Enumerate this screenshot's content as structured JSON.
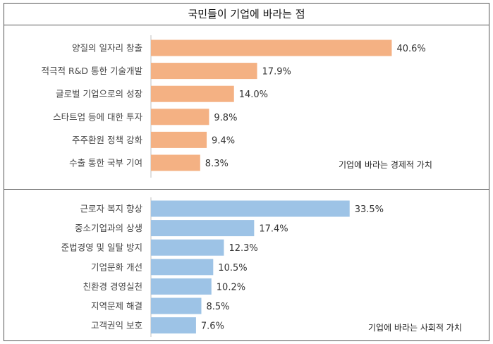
{
  "title": "국민들이 기업에 바라는 점",
  "chart_data": [
    {
      "type": "bar",
      "orientation": "horizontal",
      "series_name": "기업에 바라는 경제적 가치",
      "color": "#F4B183",
      "categories": [
        "양질의 일자리 창출",
        "적극적 R&D 통한 기술개발",
        "글로벌 기업으로의 성장",
        "스타트업 등에 대한 투자",
        "주주환원 정책 강화",
        "수출 통한 국부 기여"
      ],
      "values": [
        40.6,
        17.9,
        14.0,
        9.8,
        9.4,
        8.3
      ],
      "value_labels": [
        "40.6%",
        "17.9%",
        "14.0%",
        "9.8%",
        "9.4%",
        "8.3%"
      ],
      "unit": "%"
    },
    {
      "type": "bar",
      "orientation": "horizontal",
      "series_name": "기업에 바라는 사회적 가치",
      "color": "#9DC3E6",
      "categories": [
        "근로자 복지 향상",
        "중소기업과의 상생",
        "준법경영 및 일탈 방지",
        "기업문화 개선",
        "친환경 경영실천",
        "지역문제 해결",
        "고객권익 보호"
      ],
      "values": [
        33.5,
        17.4,
        12.3,
        10.5,
        10.2,
        8.5,
        7.6
      ],
      "value_labels": [
        "33.5%",
        "17.4%",
        "12.3%",
        "10.5%",
        "10.2%",
        "8.5%",
        "7.6%"
      ],
      "unit": "%"
    }
  ]
}
